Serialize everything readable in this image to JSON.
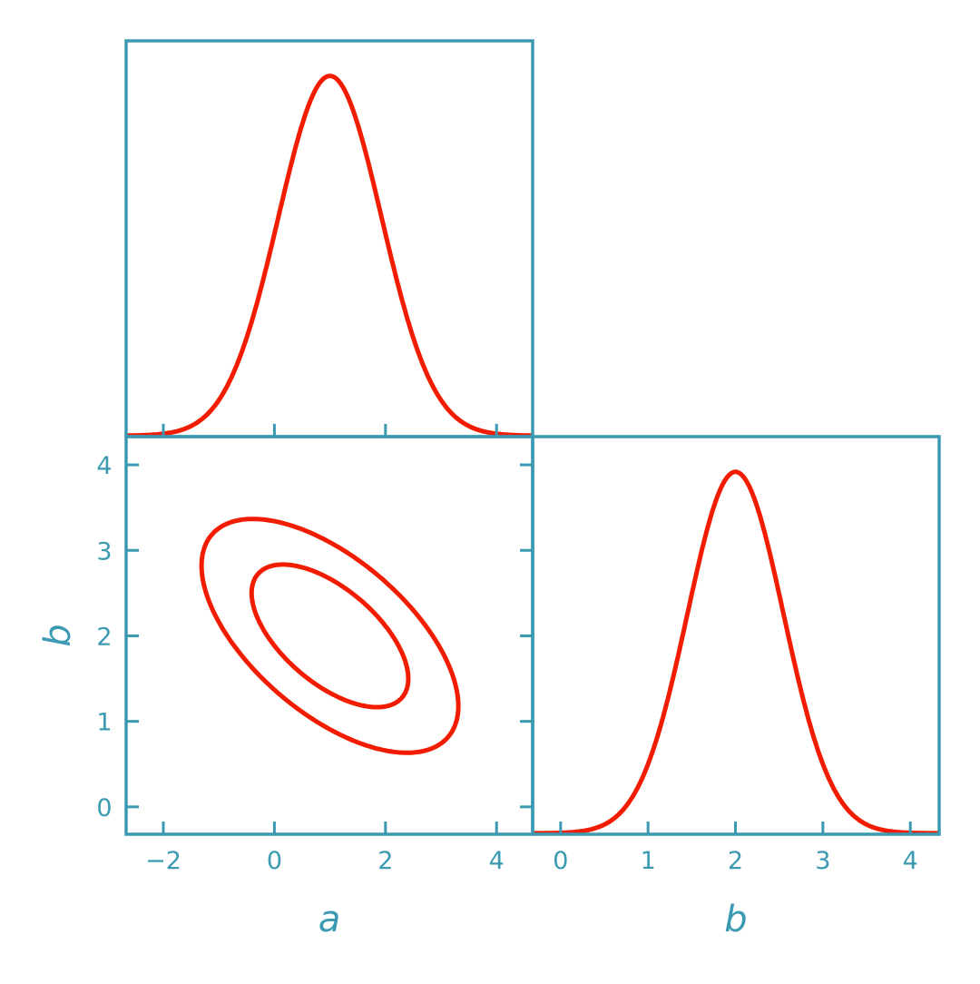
{
  "chart_data": {
    "type": "corner",
    "colors": {
      "axes": "#3b9ab2",
      "curves": "#f21d00"
    },
    "parameters": [
      "a",
      "b"
    ],
    "xlabel_a": "a",
    "xlabel_b": "b",
    "ylabel_b": "b",
    "mean": {
      "a": 1.0,
      "b": 2.0
    },
    "sigma": {
      "a": 0.93,
      "b": 0.55
    },
    "correlation": -0.6,
    "contour_levels": [
      "68%",
      "95%"
    ],
    "ranges": {
      "a": [
        -2.67,
        4.65
      ],
      "b": [
        -0.32,
        4.33
      ]
    },
    "ticks": {
      "a": [
        {
          "v": -2,
          "label": "−2"
        },
        {
          "v": 0,
          "label": "0"
        },
        {
          "v": 2,
          "label": "2"
        },
        {
          "v": 4,
          "label": "4"
        }
      ],
      "b_vertical": [
        {
          "v": 0,
          "label": "0"
        },
        {
          "v": 1,
          "label": "1"
        },
        {
          "v": 2,
          "label": "2"
        },
        {
          "v": 3,
          "label": "3"
        },
        {
          "v": 4,
          "label": "4"
        }
      ],
      "b_horizontal": [
        {
          "v": 0,
          "label": "0"
        },
        {
          "v": 1,
          "label": "1"
        },
        {
          "v": 2,
          "label": "2"
        },
        {
          "v": 3,
          "label": "3"
        },
        {
          "v": 4,
          "label": "4"
        }
      ]
    },
    "grid": false
  }
}
